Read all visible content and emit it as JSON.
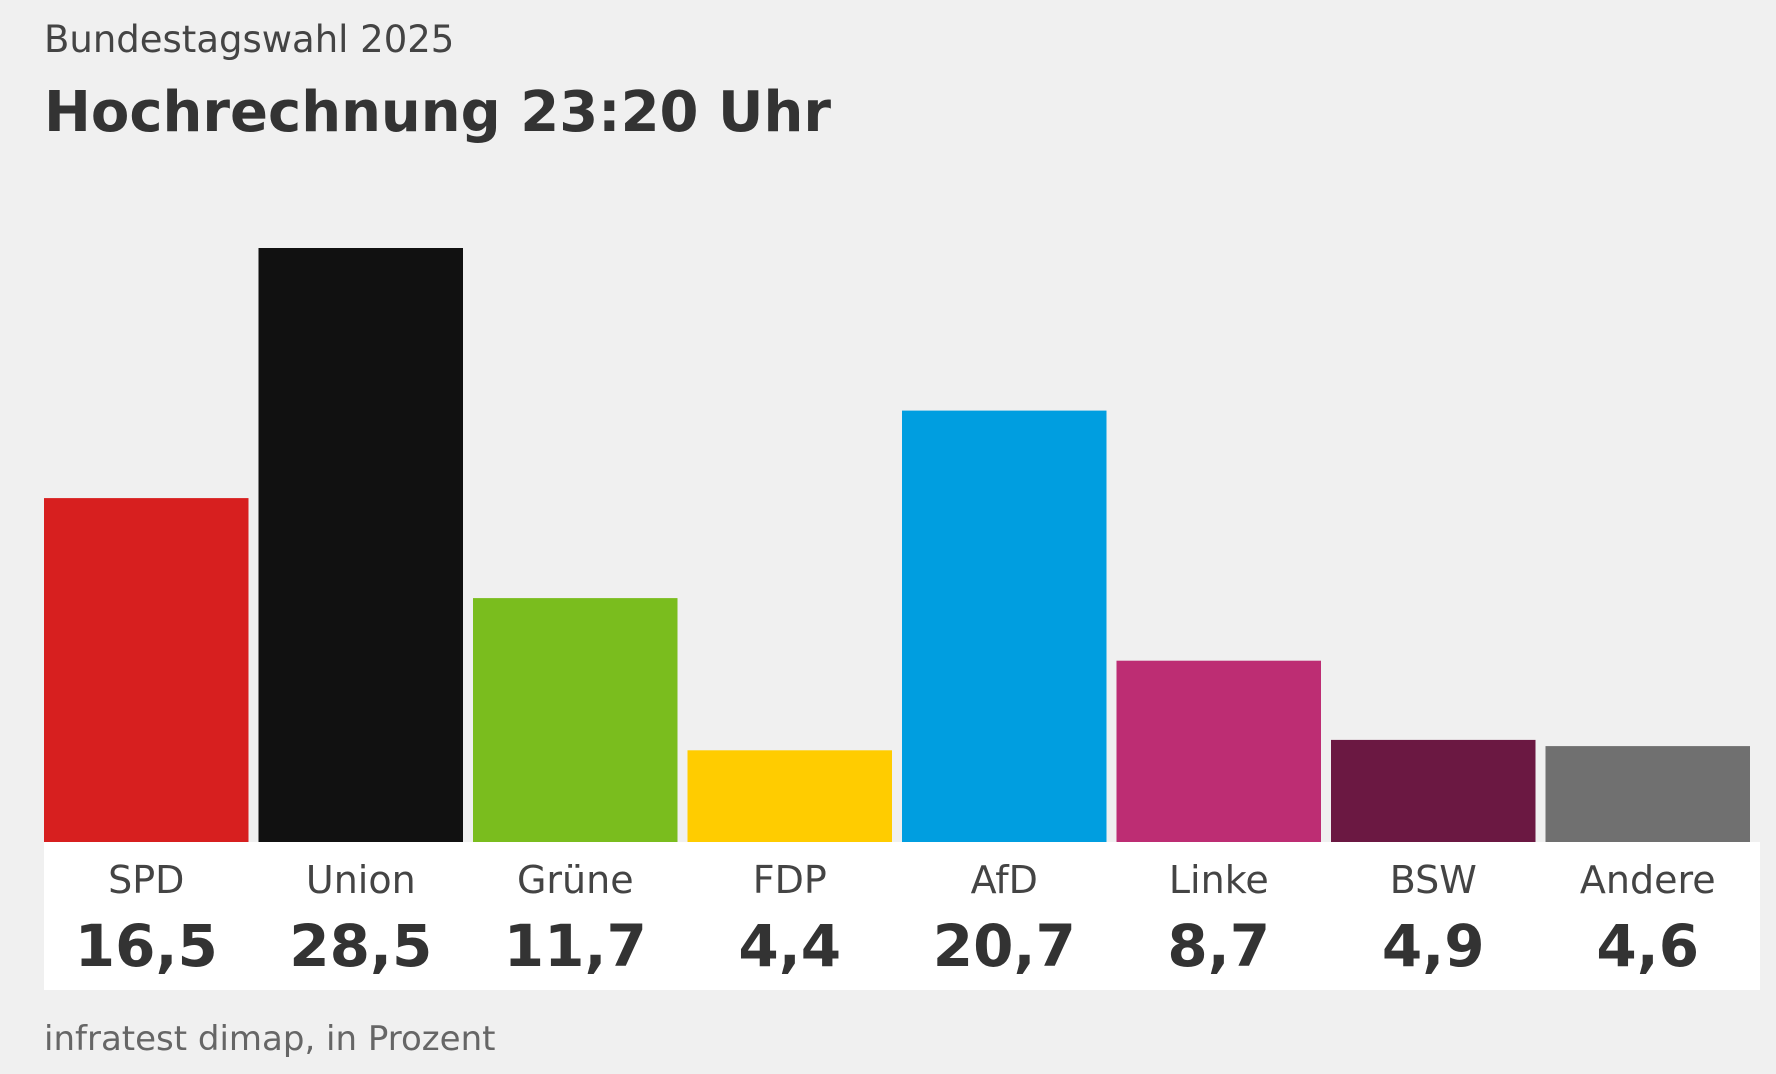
{
  "header": {
    "subtitle": "Bundestagswahl 2025",
    "title": "Hochrechnung 23:20 Uhr"
  },
  "footer": {
    "source": "infratest dimap, in Prozent"
  },
  "chart_data": {
    "type": "bar",
    "title": "Hochrechnung 23:20 Uhr",
    "subtitle": "Bundestagswahl 2025",
    "xlabel": "",
    "ylabel": "",
    "ylim": [
      0,
      28.5
    ],
    "grid": false,
    "legend": "none",
    "categories": [
      "SPD",
      "Union",
      "Grüne",
      "FDP",
      "AfD",
      "Linke",
      "BSW",
      "Andere"
    ],
    "values": [
      16.5,
      28.5,
      11.7,
      4.4,
      20.7,
      8.7,
      4.9,
      4.6
    ],
    "value_labels": [
      "16,5",
      "28,5",
      "11,7",
      "4,4",
      "20,7",
      "8,7",
      "4,9",
      "4,6"
    ],
    "colors": [
      "#d71f1f",
      "#111111",
      "#7abd1e",
      "#ffcc00",
      "#009ee0",
      "#bd2d73",
      "#6b1842",
      "#707070"
    ],
    "label_panel_color": "#ffffff"
  }
}
